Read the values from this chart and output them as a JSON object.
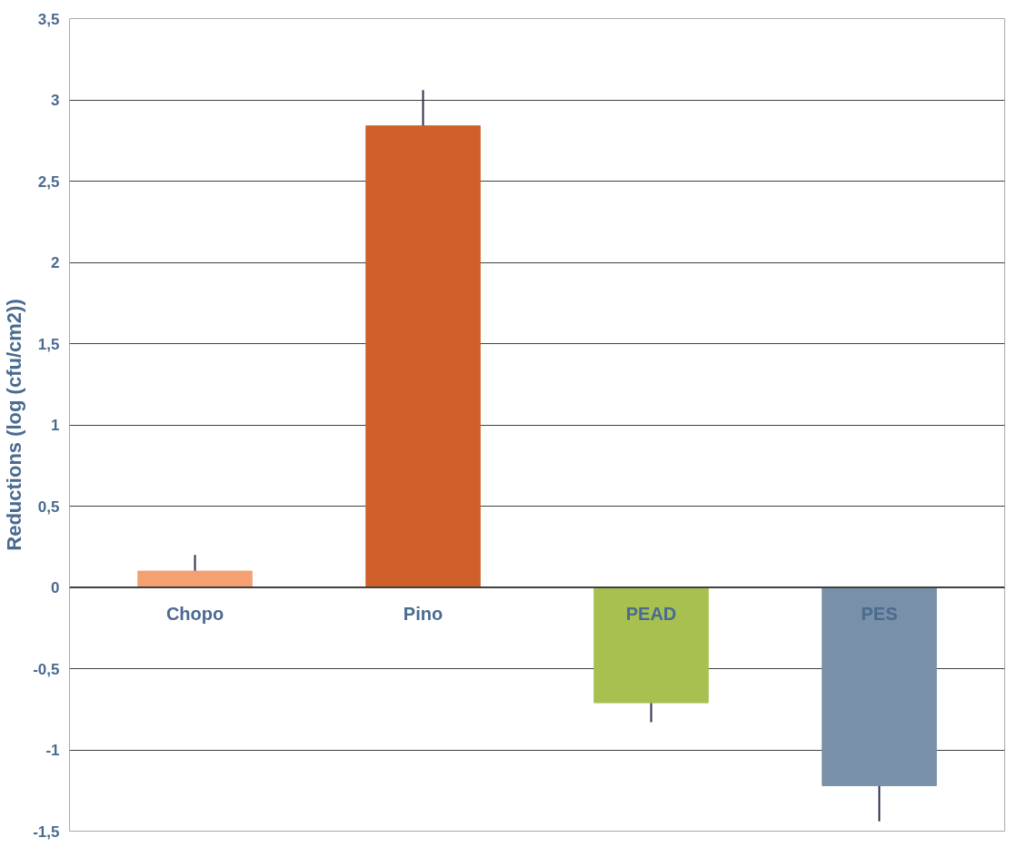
{
  "chart_data": {
    "type": "bar",
    "ylabel": "Reductions (log (cfu/cm2))",
    "categories": [
      "Chopo",
      "Pino",
      "PEAD",
      "PES"
    ],
    "values": [
      0.1,
      2.84,
      -0.71,
      -1.22
    ],
    "colors": [
      "#f4a070",
      "#d0602a",
      "#a8c050",
      "#7890a8"
    ],
    "errors": [
      0.1,
      0.22,
      0.12,
      0.22
    ],
    "ylim": [
      -1.5,
      3.5
    ],
    "yticks": [
      {
        "value": -1.5,
        "label": "-1,5"
      },
      {
        "value": -1,
        "label": "-1"
      },
      {
        "value": -0.5,
        "label": "-0,5"
      },
      0,
      {
        "value": 0.5,
        "label": "0,5"
      },
      1,
      {
        "value": 1.5,
        "label": "1,5"
      },
      2,
      {
        "value": 2.5,
        "label": "2,5"
      },
      3,
      {
        "value": 3.5,
        "label": "3,5"
      }
    ],
    "grid": "y"
  }
}
